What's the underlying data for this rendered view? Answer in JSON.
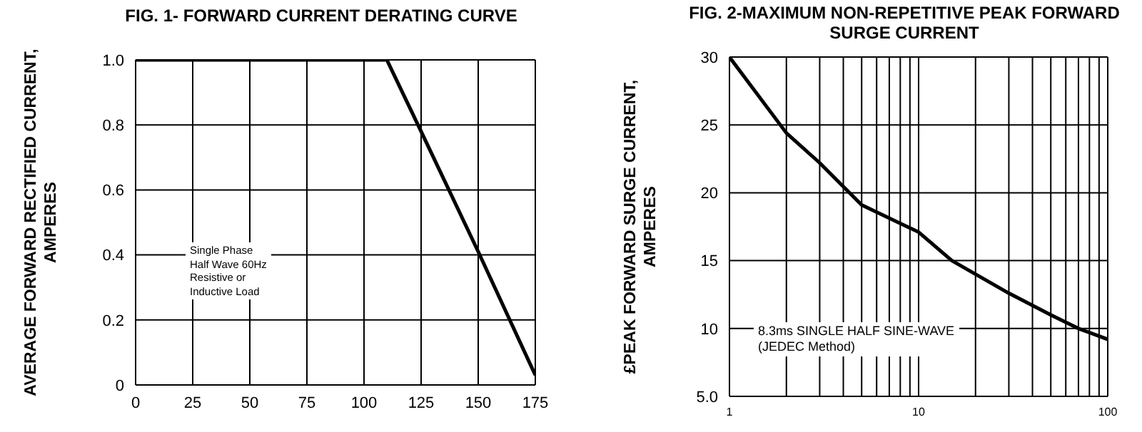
{
  "chart_data": [
    {
      "type": "line",
      "title": "FIG. 1- FORWARD CURRENT DERATING CURVE",
      "ylabel": "AVERAGE FORWARD RECTIFIED CURRENT,\nAMPERES",
      "x": [
        0,
        110,
        125,
        150,
        175
      ],
      "series": [
        {
          "color": "#000000",
          "values": [
            1.0,
            1.0,
            0.78,
            0.41,
            0.03
          ]
        }
      ],
      "xlim": [
        0,
        175
      ],
      "xticks": [
        0,
        25,
        50,
        75,
        100,
        125,
        150,
        175
      ],
      "ylim": [
        0,
        1
      ],
      "yticks": [
        0,
        0.2,
        0.4,
        0.6,
        0.8,
        {
          "value": 1,
          "label": "1.0"
        }
      ],
      "grid": true,
      "marker": "none",
      "line_style": "solid",
      "annotations": [
        "Single Phase\nHalf Wave 60Hz\nResistive or\nInductive Load"
      ]
    },
    {
      "type": "line",
      "title": "FIG. 2-MAXIMUM NON-REPETITIVE PEAK FORWARD\nSURGE CURRENT",
      "ylabel": "£PEAK  FORWARD SURGE CURRENT,\nAMPERES",
      "x": [
        1,
        2,
        3,
        5,
        10,
        15,
        20,
        30,
        50,
        70,
        100
      ],
      "series": [
        {
          "color": "#000000",
          "values": [
            30,
            24.4,
            22.2,
            19.1,
            17.1,
            15,
            14.0,
            12.6,
            11.0,
            10.0,
            9.2
          ]
        }
      ],
      "log": "x",
      "xlim": [
        1,
        100
      ],
      "xticks": [
        1,
        {
          "value": 2,
          "label": null
        },
        {
          "value": 3,
          "label": null
        },
        {
          "value": 4,
          "label": null
        },
        {
          "value": 5,
          "label": null
        },
        {
          "value": 6,
          "label": null
        },
        {
          "value": 7,
          "label": null
        },
        {
          "value": 8,
          "label": null
        },
        {
          "value": 9,
          "label": null
        },
        10,
        {
          "value": 20,
          "label": null
        },
        {
          "value": 30,
          "label": null
        },
        {
          "value": 40,
          "label": null
        },
        {
          "value": 50,
          "label": null
        },
        {
          "value": 60,
          "label": null
        },
        {
          "value": 70,
          "label": null
        },
        {
          "value": 80,
          "label": null
        },
        {
          "value": 90,
          "label": null
        },
        100
      ],
      "ylim": [
        5,
        30
      ],
      "yticks": [
        {
          "value": 5,
          "label": "5.0"
        },
        10,
        15,
        20,
        25,
        30
      ],
      "grid": true,
      "marker": "none",
      "line_style": "solid",
      "annotations": [
        "8.3ms SINGLE HALF SINE-WAVE\n(JEDEC Method)"
      ]
    }
  ]
}
